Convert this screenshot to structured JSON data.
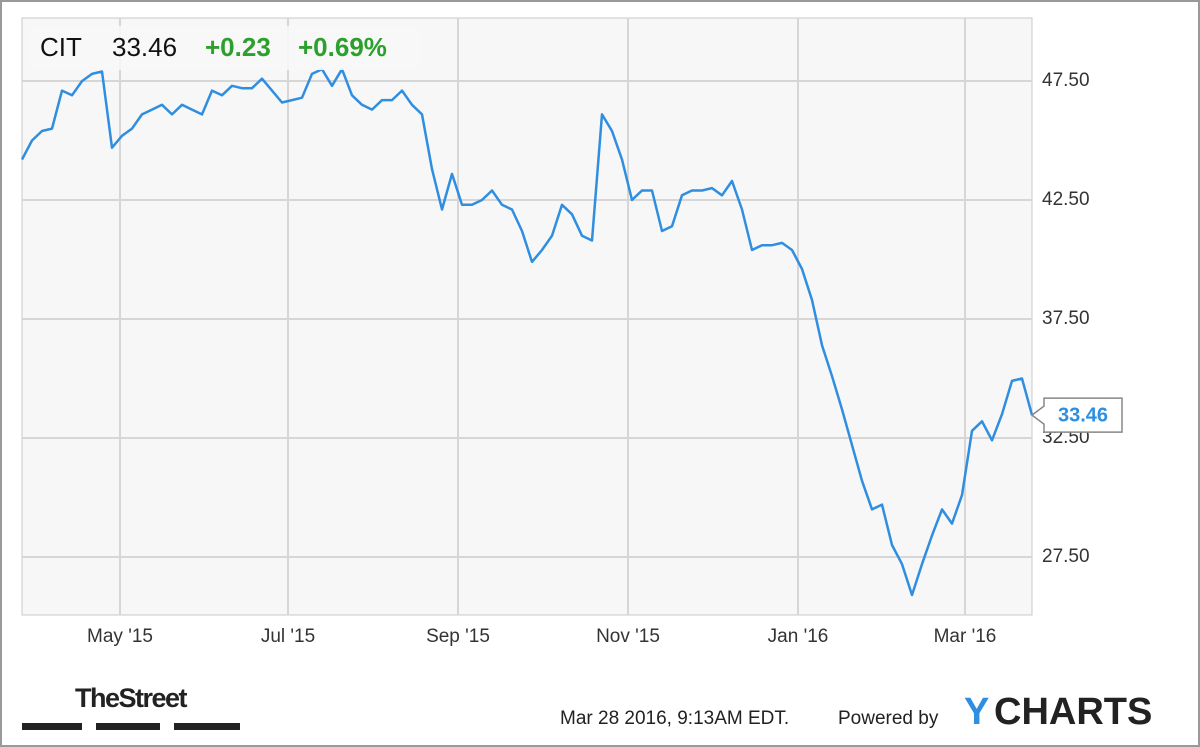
{
  "chart_data": {
    "type": "line",
    "header": {
      "ticker": "CIT",
      "change": "+0.23",
      "change_pct": "+0.69%"
    },
    "footer": {
      "brand": "TheStreet",
      "timestamp": "Mar 28 2016, 9:13AM EDT.",
      "powered_by": "Powered by",
      "logo_y": "Y",
      "logo_rest": "CHARTS"
    },
    "series": [
      {
        "color": "#2f8ee0",
        "values": [
          44.2,
          45.0,
          45.4,
          45.5,
          47.1,
          46.9,
          47.5,
          47.8,
          47.9,
          44.7,
          45.2,
          45.5,
          46.1,
          46.3,
          46.5,
          46.1,
          46.5,
          46.3,
          46.1,
          47.1,
          46.9,
          47.3,
          47.2,
          47.2,
          47.6,
          47.1,
          46.6,
          46.7,
          46.8,
          47.8,
          48.0,
          47.3,
          48.0,
          46.9,
          46.5,
          46.3,
          46.7,
          46.7,
          47.1,
          46.5,
          46.1,
          43.8,
          42.1,
          43.6,
          42.3,
          42.3,
          42.5,
          42.9,
          42.3,
          42.1,
          41.2,
          39.9,
          40.4,
          41.0,
          42.3,
          41.9,
          41.0,
          40.8,
          46.1,
          45.4,
          44.2,
          42.5,
          42.9,
          42.9,
          41.2,
          41.4,
          42.7,
          42.9,
          42.9,
          43.0,
          42.7,
          43.3,
          42.1,
          40.4,
          40.6,
          40.6,
          40.7,
          40.4,
          39.6,
          38.3,
          36.4,
          35.1,
          33.7,
          32.2,
          30.7,
          29.5,
          29.7,
          28.0,
          27.2,
          25.9,
          27.2,
          28.4,
          29.5,
          28.9,
          30.1,
          32.8,
          33.2,
          32.4,
          33.5,
          34.9,
          35.0,
          33.46
        ]
      }
    ],
    "xlim": [
      0,
      101
    ],
    "xticks": [
      {
        "value": 9.8,
        "label": "May '15"
      },
      {
        "value": 26.6,
        "label": "Jul '15"
      },
      {
        "value": 43.6,
        "label": "Sep '15"
      },
      {
        "value": 60.6,
        "label": "Nov '15"
      },
      {
        "value": 77.6,
        "label": "Jan '16"
      },
      {
        "value": 94.3,
        "label": "Mar '16"
      }
    ],
    "ylim": [
      25.06,
      50.15
    ],
    "yticks": [
      {
        "value": 27.5,
        "label": "27.50"
      },
      {
        "value": 32.5,
        "label": "32.50"
      },
      {
        "value": 37.5,
        "label": "37.50"
      },
      {
        "value": 42.5,
        "label": "42.50"
      },
      {
        "value": 47.5,
        "label": "47.50"
      }
    ],
    "grid": true
  }
}
